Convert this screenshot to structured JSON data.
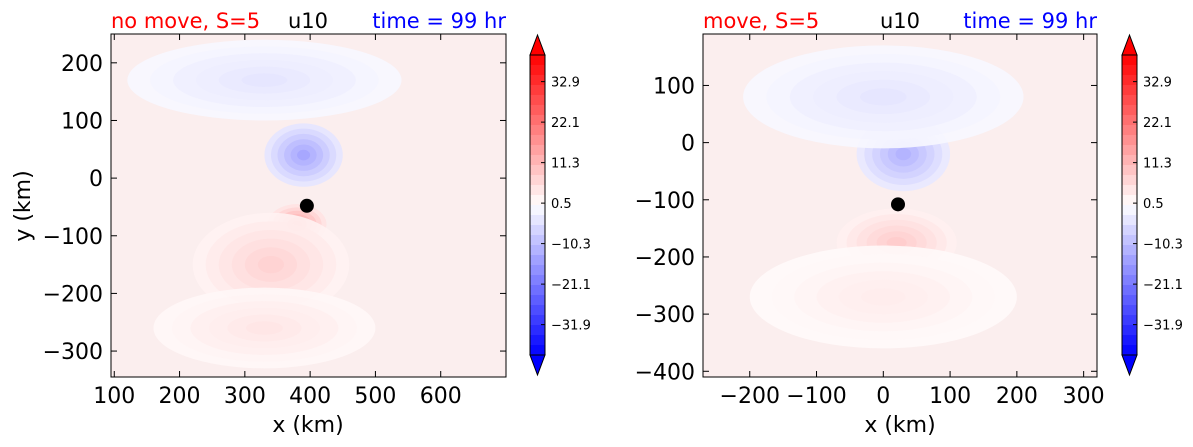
{
  "chart_data": [
    {
      "type": "heatmap",
      "title_left": "no move, S=5",
      "title_center": "u10",
      "title_right": "time = 99 hr",
      "xlabel": "x (km)",
      "ylabel": "y (km)",
      "xlim": [
        95,
        700
      ],
      "ylim": [
        -345,
        250
      ],
      "x_ticks": [
        "100",
        "200",
        "300",
        "400",
        "500",
        "600"
      ],
      "x_tick_values": [
        100,
        200,
        300,
        400,
        500,
        600
      ],
      "y_ticks": [
        "200",
        "100",
        "0",
        "−100",
        "−200",
        "−300"
      ],
      "y_tick_values": [
        200,
        100,
        0,
        -100,
        -200,
        -300
      ],
      "storm_center": {
        "x": 395,
        "y": -48
      },
      "features": [
        {
          "x": 390,
          "y": 40,
          "rx": 60,
          "ry": 55,
          "value": -14
        },
        {
          "x": 330,
          "y": 170,
          "rx": 210,
          "ry": 70,
          "value": -4
        },
        {
          "x": 380,
          "y": -80,
          "rx": 45,
          "ry": 35,
          "value": 15
        },
        {
          "x": 340,
          "y": -150,
          "rx": 120,
          "ry": 90,
          "value": 7
        },
        {
          "x": 330,
          "y": -260,
          "rx": 170,
          "ry": 70,
          "value": 4
        }
      ],
      "colorbar": {
        "ticks": [
          "32.9",
          "22.1",
          "11.3",
          "0.5",
          "−10.3",
          "−21.1",
          "−31.9"
        ],
        "tick_values": [
          32.9,
          22.1,
          11.3,
          0.5,
          -10.3,
          -21.1,
          -31.9
        ],
        "range": [
          -40,
          40
        ],
        "extend": "both",
        "colormap": "bwr"
      }
    },
    {
      "type": "heatmap",
      "title_left": "move, S=5",
      "title_center": "u10",
      "title_right": "time = 99 hr",
      "xlabel": "x (km)",
      "ylabel": "",
      "xlim": [
        -270,
        320
      ],
      "ylim": [
        -410,
        190
      ],
      "x_ticks": [
        "−200",
        "−100",
        "0",
        "100",
        "200",
        "300"
      ],
      "x_tick_values": [
        -200,
        -100,
        0,
        100,
        200,
        300
      ],
      "y_ticks": [
        "100",
        "0",
        "−100",
        "−200",
        "−300",
        "−400"
      ],
      "y_tick_values": [
        100,
        0,
        -100,
        -200,
        -300,
        -400
      ],
      "storm_center": {
        "x": 22,
        "y": -108
      },
      "features": [
        {
          "x": 30,
          "y": -20,
          "rx": 70,
          "ry": 65,
          "value": -12
        },
        {
          "x": 0,
          "y": 80,
          "rx": 210,
          "ry": 90,
          "value": -4
        },
        {
          "x": 20,
          "y": -175,
          "rx": 90,
          "ry": 60,
          "value": 8
        },
        {
          "x": 0,
          "y": -270,
          "rx": 200,
          "ry": 90,
          "value": 3
        }
      ],
      "colorbar": {
        "ticks": [
          "32.9",
          "22.1",
          "11.3",
          "0.5",
          "−10.3",
          "−21.1",
          "−31.9"
        ],
        "tick_values": [
          32.9,
          22.1,
          11.3,
          0.5,
          -10.3,
          -21.1,
          -31.9
        ],
        "range": [
          -40,
          40
        ],
        "extend": "both",
        "colormap": "bwr"
      }
    }
  ],
  "colors": {
    "title_left": "#ff0000",
    "title_center": "#000000",
    "title_right": "#0000ff",
    "storm_marker": "#000000",
    "axis": "#000000"
  }
}
